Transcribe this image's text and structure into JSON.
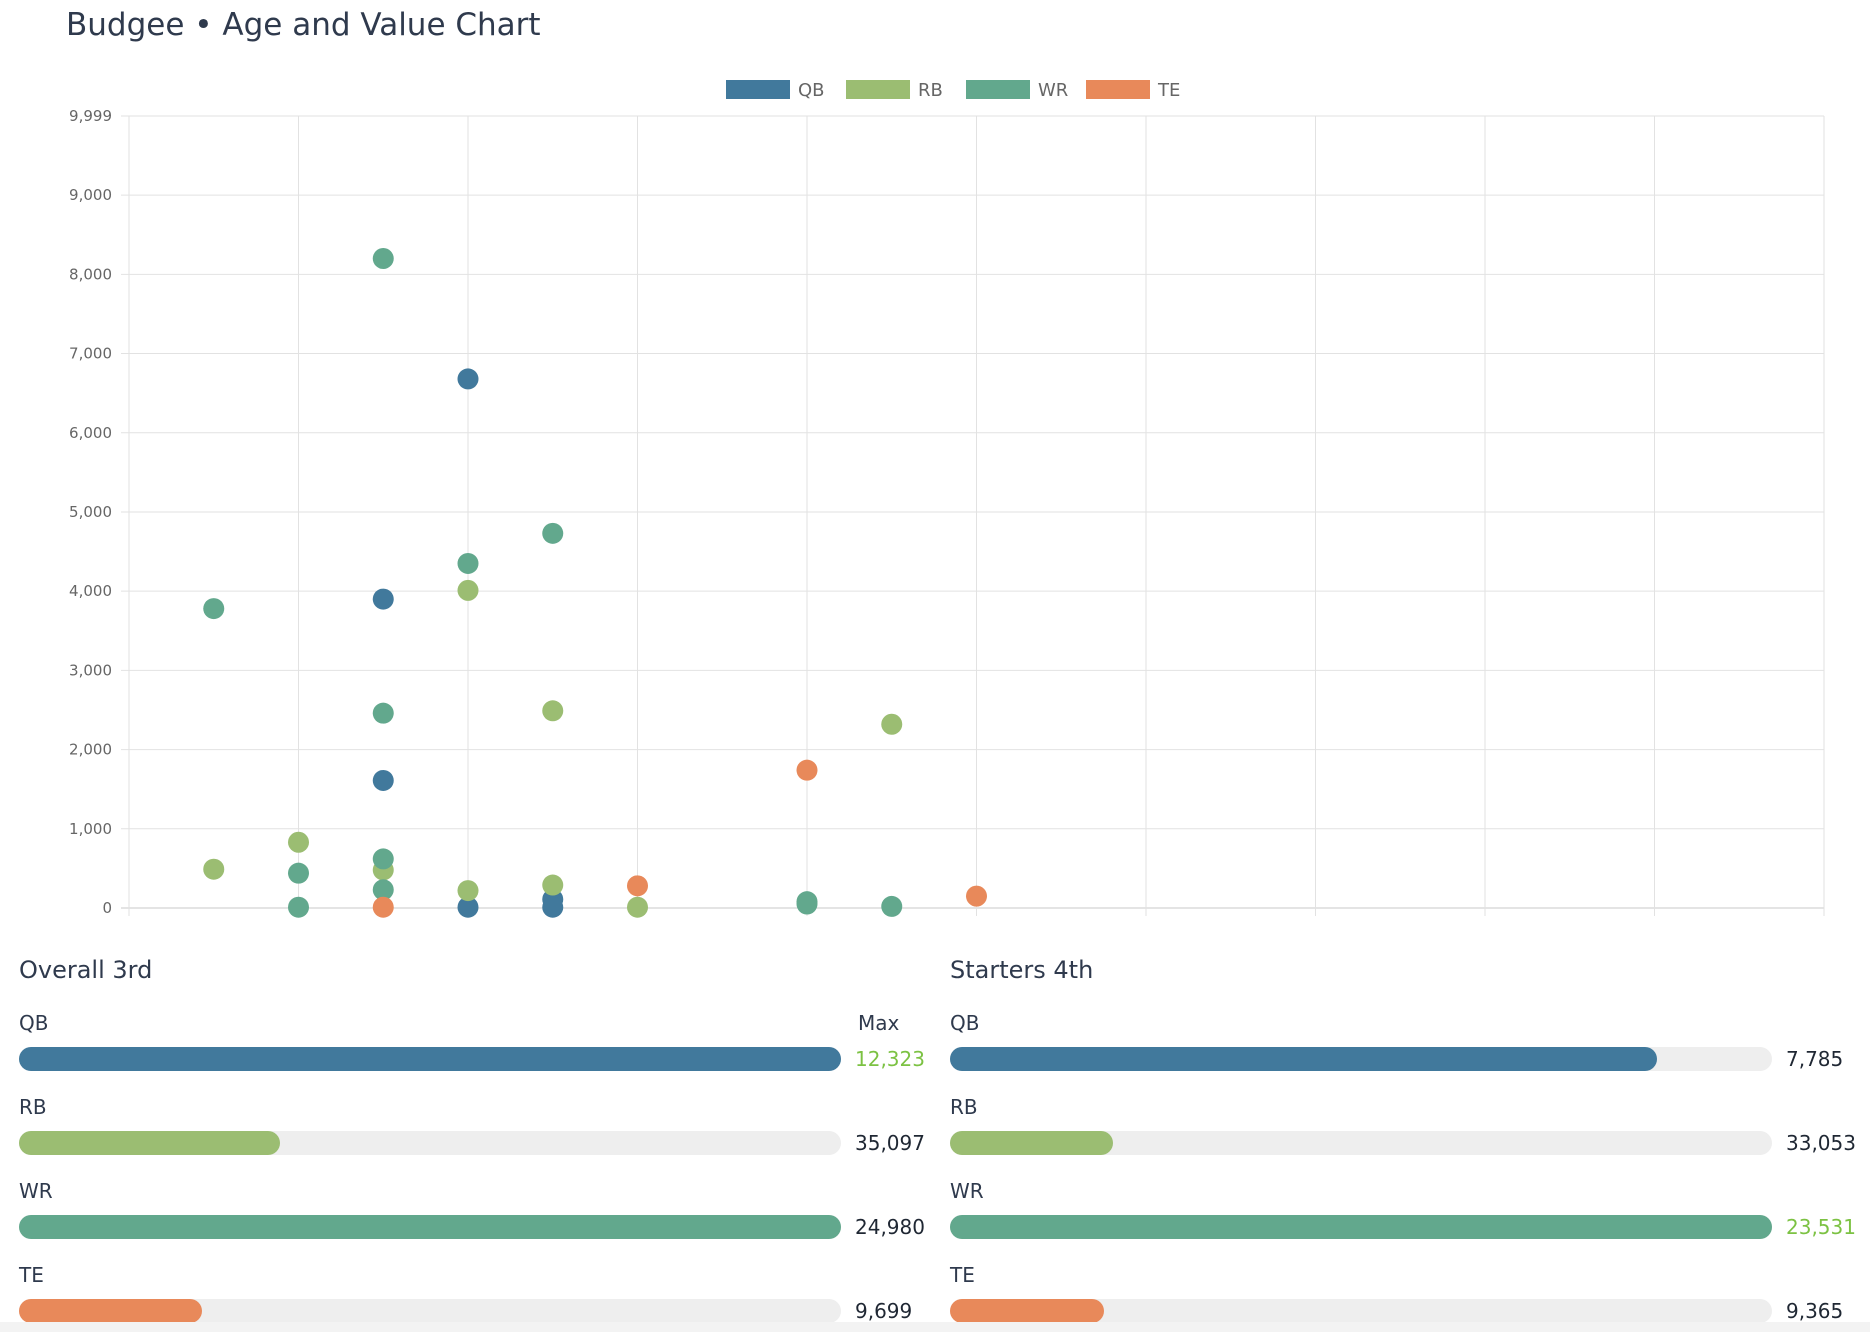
{
  "page": {
    "title": "Budgee • Age and Value Chart"
  },
  "colors": {
    "QB": "#41799c",
    "RB": "#9bbd72",
    "WR": "#62a88d",
    "TE": "#e8895a",
    "highlight": "#7cc243"
  },
  "chart_data": {
    "type": "scatter",
    "title": "",
    "xlabel": "",
    "ylabel": "",
    "xlim": [
      20,
      40
    ],
    "ylim": [
      0,
      9999
    ],
    "x_ticks": [
      "20",
      "22",
      "24",
      "26",
      "28",
      "30",
      "32",
      "34",
      "36",
      "38",
      "40"
    ],
    "y_ticks": [
      "0",
      "1,000",
      "2,000",
      "3,000",
      "4,000",
      "5,000",
      "6,000",
      "7,000",
      "8,000",
      "9,000",
      "9,999"
    ],
    "grid": true,
    "legend_position": "top-center",
    "series": [
      {
        "name": "QB",
        "color": "#41799c",
        "points": [
          [
            24,
            6680
          ],
          [
            23,
            3900
          ],
          [
            23,
            1610
          ],
          [
            25,
            110
          ],
          [
            24,
            10
          ],
          [
            25,
            10
          ]
        ]
      },
      {
        "name": "RB",
        "color": "#9bbd72",
        "points": [
          [
            24,
            4010
          ],
          [
            25,
            2490
          ],
          [
            29,
            2320
          ],
          [
            22,
            830
          ],
          [
            21,
            490
          ],
          [
            23,
            480
          ],
          [
            25,
            290
          ],
          [
            24,
            220
          ],
          [
            26,
            10
          ]
        ]
      },
      {
        "name": "WR",
        "color": "#62a88d",
        "points": [
          [
            23,
            8200
          ],
          [
            25,
            4730
          ],
          [
            24,
            4350
          ],
          [
            21,
            3780
          ],
          [
            23,
            2460
          ],
          [
            23,
            620
          ],
          [
            22,
            440
          ],
          [
            23,
            230
          ],
          [
            22,
            10
          ],
          [
            28,
            80
          ],
          [
            28,
            50
          ],
          [
            29,
            20
          ]
        ]
      },
      {
        "name": "TE",
        "color": "#e8895a",
        "points": [
          [
            28,
            1740
          ],
          [
            26,
            280
          ],
          [
            30,
            150
          ],
          [
            23,
            10
          ]
        ]
      }
    ]
  },
  "panels": [
    {
      "title": "Overall 3rd",
      "max_label": "Max",
      "bars": [
        {
          "pos": "QB",
          "value": "12,323",
          "fraction": 1.0,
          "highlight": true
        },
        {
          "pos": "RB",
          "value": "35,097",
          "fraction": 0.317,
          "highlight": false
        },
        {
          "pos": "WR",
          "value": "24,980",
          "fraction": 1.0,
          "highlight": false
        },
        {
          "pos": "TE",
          "value": "9,699",
          "fraction": 0.223,
          "highlight": false
        }
      ]
    },
    {
      "title": "Starters 4th",
      "max_label": "",
      "bars": [
        {
          "pos": "QB",
          "value": "7,785",
          "fraction": 0.86,
          "highlight": false
        },
        {
          "pos": "RB",
          "value": "33,053",
          "fraction": 0.198,
          "highlight": false
        },
        {
          "pos": "WR",
          "value": "23,531",
          "fraction": 1.0,
          "highlight": true
        },
        {
          "pos": "TE",
          "value": "9,365",
          "fraction": 0.187,
          "highlight": false
        }
      ]
    }
  ]
}
